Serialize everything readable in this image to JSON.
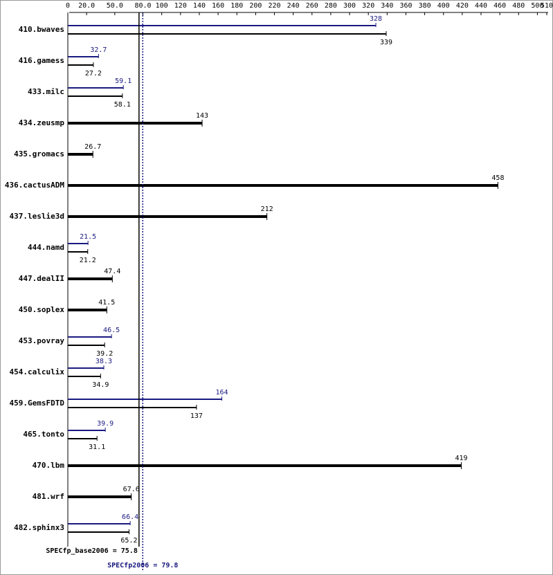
{
  "chart_data": {
    "type": "bar",
    "categories": [
      "410.bwaves",
      "416.gamess",
      "433.milc",
      "434.zeusmp",
      "435.gromacs",
      "436.cactusADM",
      "437.leslie3d",
      "444.namd",
      "447.dealII",
      "450.soplex",
      "453.povray",
      "454.calculix",
      "459.GemsFDTD",
      "465.tonto",
      "470.lbm",
      "481.wrf",
      "482.sphinx3"
    ],
    "series": [
      {
        "color": "#000000",
        "values": [
          339,
          27.2,
          58.1,
          143,
          26.7,
          458,
          212,
          21.2,
          47.4,
          41.5,
          39.2,
          34.9,
          137,
          31.1,
          419,
          67.6,
          65.2
        ]
      },
      {
        "color": "#191980",
        "values": [
          328,
          32.7,
          59.1,
          null,
          null,
          null,
          null,
          21.5,
          null,
          null,
          46.5,
          38.3,
          164,
          39.9,
          null,
          null,
          66.4
        ]
      }
    ],
    "xlim": [
      0,
      510
    ],
    "xticks": [
      0,
      {
        "value": 20,
        "label": "20.0"
      },
      {
        "value": 50,
        "label": "50.0"
      },
      {
        "value": 80,
        "label": "80.0"
      },
      100,
      120,
      140,
      160,
      180,
      200,
      220,
      240,
      260,
      280,
      300,
      320,
      340,
      360,
      380,
      400,
      420,
      440,
      460,
      480,
      500,
      510
    ],
    "reference_lines": [
      {
        "label": "SPECfp_base2006 = 75.8",
        "value": 75.8,
        "color": "#000000"
      },
      {
        "label": "SPECfp2006 = 79.8",
        "value": 79.8,
        "color": "#191980"
      }
    ]
  }
}
